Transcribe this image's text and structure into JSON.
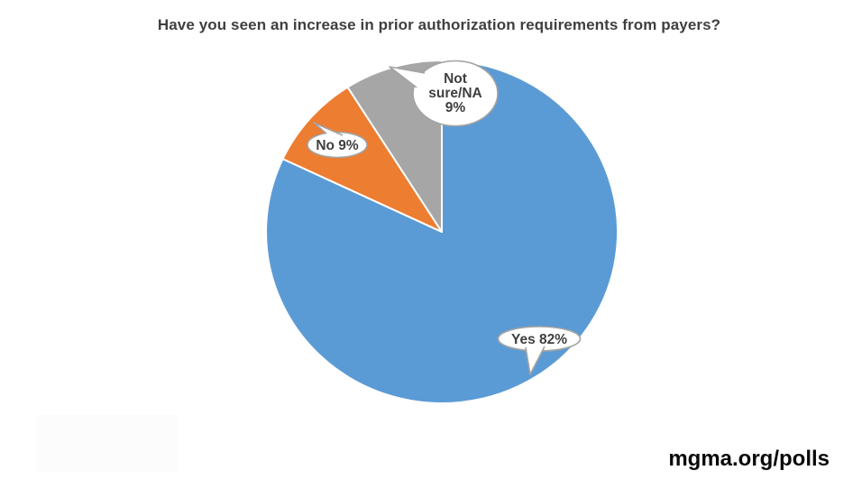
{
  "page": {
    "background": "#ffffff"
  },
  "footer": {
    "site_label": "mgma.org/polls",
    "color": "#0a0a0a"
  },
  "chart_data": {
    "type": "pie",
    "title": "Have you seen an increase in prior authorization requirements from payers?",
    "title_color": "#3f3f3f",
    "start_angle_deg": 0,
    "direction": "clockwise",
    "legend": "none",
    "label_style": "callout-bubbles",
    "slice_border_color": "#ffffff",
    "categories": [
      "Yes",
      "No",
      "Not sure/NA"
    ],
    "values": [
      82,
      9,
      9
    ],
    "slices": [
      {
        "id": "yes",
        "label": "Yes",
        "value": 82,
        "percent": "82%",
        "color": "#5b9bd5",
        "callout_lines": [
          "Yes 82%"
        ]
      },
      {
        "id": "no",
        "label": "No",
        "value": 9,
        "percent": "9%",
        "color": "#ed7d31",
        "callout_lines": [
          "No 9%"
        ]
      },
      {
        "id": "not-sure-na",
        "label": "Not sure/NA",
        "value": 9,
        "percent": "9%",
        "color": "#a6a6a6",
        "callout_lines": [
          "Not",
          "sure/NA",
          "9%"
        ]
      }
    ],
    "callout_bubble": {
      "fill": "#ffffff",
      "border": "#a3a3a3",
      "text_color": "#3f3f3f"
    }
  }
}
